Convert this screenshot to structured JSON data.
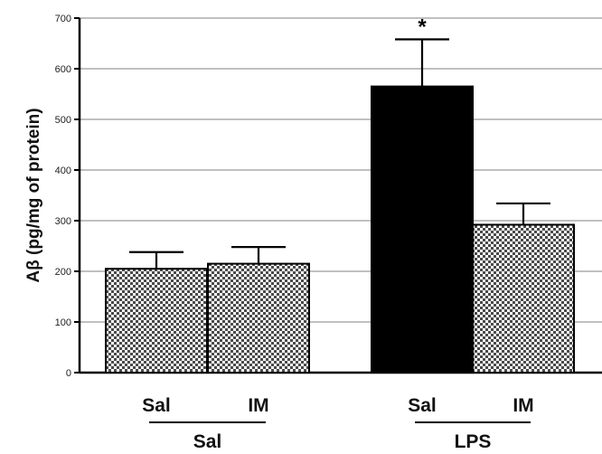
{
  "chart_data": {
    "type": "bar",
    "ylabel": "Aβ (pg/mg of protein)",
    "ylim": [
      0,
      700
    ],
    "yticks": [
      0,
      100,
      200,
      300,
      400,
      500,
      600,
      700
    ],
    "grid": true,
    "categories": [
      "Sal",
      "IM",
      "Sal",
      "IM"
    ],
    "groups": [
      {
        "label": "Sal",
        "categories": [
          0,
          1
        ]
      },
      {
        "label": "LPS",
        "categories": [
          2,
          3
        ]
      }
    ],
    "values": [
      205,
      215,
      565,
      292
    ],
    "errors": [
      33,
      33,
      93,
      42
    ],
    "fills": [
      "hatched",
      "hatched",
      "solid",
      "hatched"
    ],
    "annotations": [
      {
        "category": 2,
        "text": "*"
      }
    ]
  },
  "colors": {
    "solid": "#000000",
    "hatch_dark": "#4a4a4a",
    "hatch_light": "#ffffff",
    "grid": "#9a9a9a",
    "axis": "#000000"
  }
}
